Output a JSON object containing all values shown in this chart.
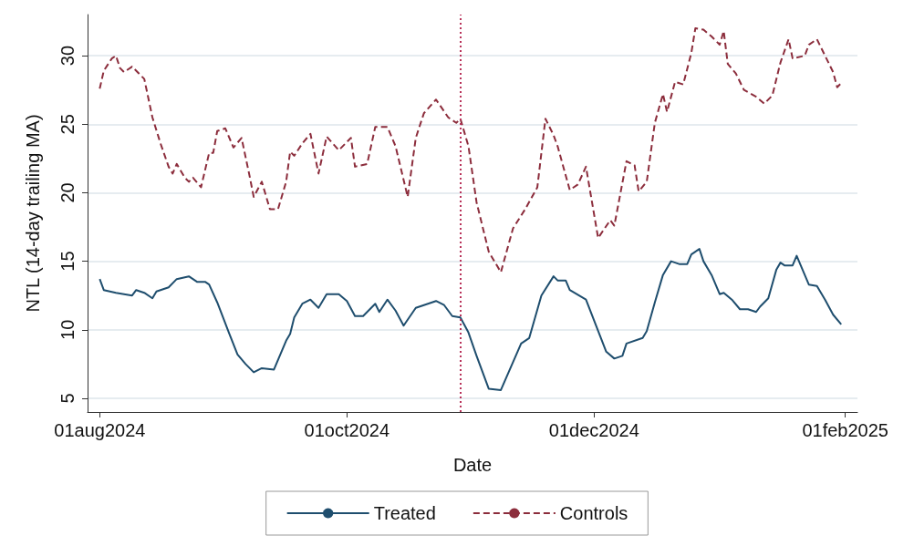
{
  "chart_data": {
    "type": "line",
    "xlabel": "Date",
    "ylabel": "NTL (14-day trailing MA)",
    "xlim": [
      "2024-07-29",
      "2025-02-04"
    ],
    "ylim": [
      4,
      33
    ],
    "xticks": [
      {
        "value": "2024-08-01",
        "label": "01aug2024"
      },
      {
        "value": "2024-10-01",
        "label": "01oct2024"
      },
      {
        "value": "2024-12-01",
        "label": "01dec2024"
      },
      {
        "value": "2025-02-01",
        "label": "01feb2025"
      }
    ],
    "yticks": [
      5,
      10,
      15,
      20,
      25,
      30
    ],
    "grid": "y",
    "legend": "bottom",
    "ref_lines": [
      {
        "axis": "x",
        "value": "2024-10-29",
        "color": "#b8325a",
        "line_style": "dotted"
      }
    ],
    "series": [
      {
        "name": "Treated",
        "color": "#1f4e6e",
        "line_style": "solid",
        "x": [
          "2024-08-01",
          "2024-08-02",
          "2024-08-05",
          "2024-08-09",
          "2024-08-10",
          "2024-08-12",
          "2024-08-14",
          "2024-08-15",
          "2024-08-18",
          "2024-08-20",
          "2024-08-23",
          "2024-08-25",
          "2024-08-27",
          "2024-08-28",
          "2024-08-30",
          "2024-09-02",
          "2024-09-04",
          "2024-09-06",
          "2024-09-08",
          "2024-09-10",
          "2024-09-13",
          "2024-09-16",
          "2024-09-17",
          "2024-09-18",
          "2024-09-20",
          "2024-09-22",
          "2024-09-24",
          "2024-09-26",
          "2024-09-29",
          "2024-10-01",
          "2024-10-03",
          "2024-10-05",
          "2024-10-08",
          "2024-10-09",
          "2024-10-11",
          "2024-10-13",
          "2024-10-15",
          "2024-10-18",
          "2024-10-21",
          "2024-10-23",
          "2024-10-25",
          "2024-10-27",
          "2024-10-29",
          "2024-10-31",
          "2024-11-02",
          "2024-11-05",
          "2024-11-08",
          "2024-11-13",
          "2024-11-15",
          "2024-11-18",
          "2024-11-21",
          "2024-11-22",
          "2024-11-24",
          "2024-11-25",
          "2024-11-29",
          "2024-12-04",
          "2024-12-06",
          "2024-12-08",
          "2024-12-09",
          "2024-12-13",
          "2024-12-14",
          "2024-12-16",
          "2024-12-18",
          "2024-12-20",
          "2024-12-22",
          "2024-12-24",
          "2024-12-25",
          "2024-12-27",
          "2024-12-28",
          "2024-12-30",
          "2025-01-01",
          "2025-01-02",
          "2025-01-04",
          "2025-01-06",
          "2025-01-08",
          "2025-01-10",
          "2025-01-11",
          "2025-01-13",
          "2025-01-15",
          "2025-01-16",
          "2025-01-17",
          "2025-01-19",
          "2025-01-20",
          "2025-01-23",
          "2025-01-25",
          "2025-01-27",
          "2025-01-29",
          "2025-01-31"
        ],
        "values": [
          13.7,
          12.9,
          12.7,
          12.5,
          12.9,
          12.7,
          12.3,
          12.8,
          13.1,
          13.7,
          13.9,
          13.5,
          13.5,
          13.3,
          12.0,
          9.7,
          8.2,
          7.5,
          6.9,
          7.2,
          7.1,
          9.2,
          9.7,
          10.9,
          11.9,
          12.2,
          11.6,
          12.6,
          12.6,
          12.1,
          11.0,
          11.0,
          11.9,
          11.3,
          12.2,
          11.4,
          10.3,
          11.6,
          11.9,
          12.1,
          11.8,
          11.0,
          10.9,
          9.8,
          8.1,
          5.7,
          5.6,
          9.0,
          9.4,
          12.5,
          13.9,
          13.6,
          13.6,
          12.9,
          12.2,
          8.4,
          7.9,
          8.1,
          9.0,
          9.4,
          9.9,
          12.0,
          14.0,
          15.0,
          14.8,
          14.8,
          15.5,
          15.9,
          15.0,
          14.0,
          12.6,
          12.7,
          12.2,
          11.5,
          11.5,
          11.3,
          11.7,
          12.3,
          14.4,
          14.9,
          14.7,
          14.7,
          15.4,
          13.3,
          13.2,
          12.2,
          11.1,
          10.4
        ]
      },
      {
        "name": "Controls",
        "color": "#8c2d3c",
        "line_style": "dashed",
        "x": [
          "2024-08-01",
          "2024-08-02",
          "2024-08-04",
          "2024-08-05",
          "2024-08-06",
          "2024-08-07",
          "2024-08-09",
          "2024-08-11",
          "2024-08-12",
          "2024-08-14",
          "2024-08-16",
          "2024-08-18",
          "2024-08-19",
          "2024-08-20",
          "2024-08-22",
          "2024-08-23",
          "2024-08-24",
          "2024-08-26",
          "2024-08-28",
          "2024-08-29",
          "2024-08-30",
          "2024-09-01",
          "2024-09-03",
          "2024-09-05",
          "2024-09-07",
          "2024-09-08",
          "2024-09-10",
          "2024-09-12",
          "2024-09-14",
          "2024-09-16",
          "2024-09-17",
          "2024-09-18",
          "2024-09-20",
          "2024-09-22",
          "2024-09-24",
          "2024-09-26",
          "2024-09-29",
          "2024-10-02",
          "2024-10-03",
          "2024-10-06",
          "2024-10-08",
          "2024-10-11",
          "2024-10-13",
          "2024-10-16",
          "2024-10-18",
          "2024-10-20",
          "2024-10-23",
          "2024-10-26",
          "2024-10-28",
          "2024-10-29",
          "2024-10-31",
          "2024-11-02",
          "2024-11-05",
          "2024-11-08",
          "2024-11-11",
          "2024-11-14",
          "2024-11-17",
          "2024-11-19",
          "2024-11-21",
          "2024-11-22",
          "2024-11-25",
          "2024-11-27",
          "2024-11-29",
          "2024-12-02",
          "2024-12-05",
          "2024-12-06",
          "2024-12-09",
          "2024-12-11",
          "2024-12-12",
          "2024-12-14",
          "2024-12-16",
          "2024-12-18",
          "2024-12-19",
          "2024-12-21",
          "2024-12-23",
          "2024-12-25",
          "2024-12-26",
          "2024-12-28",
          "2024-12-30",
          "2025-01-01",
          "2025-01-02",
          "2025-01-03",
          "2025-01-05",
          "2025-01-07",
          "2025-01-10",
          "2025-01-12",
          "2025-01-14",
          "2025-01-16",
          "2025-01-18",
          "2025-01-19",
          "2025-01-22",
          "2025-01-23",
          "2025-01-25",
          "2025-01-26",
          "2025-01-28",
          "2025-01-29",
          "2025-01-30",
          "2025-01-31"
        ],
        "values": [
          27.6,
          28.9,
          29.8,
          30.0,
          29.1,
          28.8,
          29.2,
          28.6,
          28.3,
          25.5,
          23.6,
          21.9,
          21.4,
          22.1,
          21.1,
          20.8,
          21.1,
          20.4,
          22.9,
          22.9,
          24.5,
          24.7,
          23.3,
          24.0,
          21.2,
          19.7,
          20.8,
          18.8,
          18.8,
          20.8,
          23.0,
          22.7,
          23.6,
          24.3,
          21.4,
          24.1,
          23.1,
          24.0,
          21.9,
          22.1,
          24.8,
          24.8,
          23.4,
          19.7,
          24.0,
          25.8,
          26.8,
          25.5,
          25.1,
          25.4,
          23.4,
          19.3,
          15.7,
          14.2,
          17.4,
          18.8,
          20.4,
          25.4,
          24.2,
          23.4,
          20.2,
          20.6,
          21.9,
          16.7,
          18.0,
          17.6,
          22.3,
          22.0,
          20.1,
          20.8,
          25.1,
          27.2,
          25.9,
          28.1,
          27.9,
          30.2,
          32.0,
          31.9,
          31.4,
          30.8,
          31.8,
          29.4,
          28.7,
          27.5,
          27.0,
          26.5,
          27.1,
          29.5,
          31.2,
          29.8,
          30.0,
          30.8,
          31.2,
          30.6,
          29.4,
          28.8,
          27.7,
          28.0
        ]
      }
    ]
  }
}
